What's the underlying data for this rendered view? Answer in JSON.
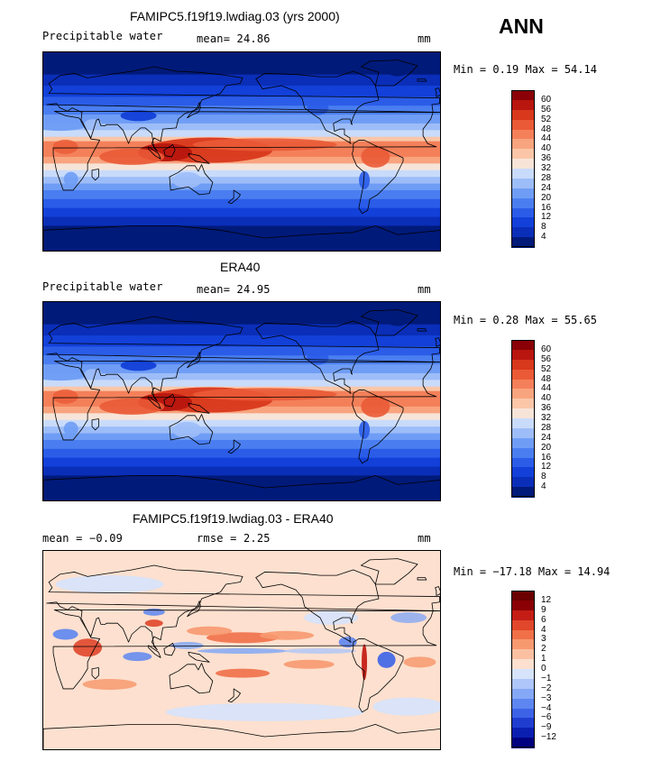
{
  "season": "ANN",
  "panels": [
    {
      "title": "FAMIPC5.f19f19.lwdiag.03 (yrs 2000)",
      "left_label": "Precipitable water",
      "mid_label": "mean=   24.86",
      "right_label": "mm",
      "minmax": "Min =   0.19  Max =   54.14",
      "colorbar_labels": [
        "60",
        "56",
        "52",
        "48",
        "44",
        "40",
        "36",
        "32",
        "28",
        "24",
        "20",
        "16",
        "12",
        "8",
        "4"
      ],
      "kind": "model"
    },
    {
      "title": "ERA40",
      "left_label": "Precipitable water",
      "mid_label": "mean=   24.95",
      "right_label": "mm",
      "minmax": "Min =   0.28  Max =   55.65",
      "colorbar_labels": [
        "60",
        "56",
        "52",
        "48",
        "44",
        "40",
        "36",
        "32",
        "28",
        "24",
        "20",
        "16",
        "12",
        "8",
        "4"
      ],
      "kind": "obs"
    },
    {
      "title": "FAMIPC5.f19f19.lwdiag.03 - ERA40",
      "left_label": "mean =   −0.09",
      "mid_label": "rmse =    2.25",
      "right_label": "mm",
      "minmax": "Min = −17.18  Max =   14.94",
      "colorbar_labels": [
        "12",
        "9",
        "6",
        "4",
        "3",
        "2",
        "1",
        "0",
        "−1",
        "−2",
        "−3",
        "−4",
        "−6",
        "−9",
        "−12"
      ],
      "kind": "diff"
    }
  ],
  "colors": {
    "abs_scale": [
      "#001a7a",
      "#0a2eb8",
      "#1240d8",
      "#2a5ce8",
      "#4a7ef0",
      "#6f9df5",
      "#9dbdf8",
      "#c9dbfa",
      "#f7e4d8",
      "#fbc6a8",
      "#f8a47e",
      "#f4805a",
      "#ea5a36",
      "#d8381c",
      "#b8160e",
      "#8a0006"
    ],
    "diff_scale": [
      "#000080",
      "#0a1fb0",
      "#1f3ed0",
      "#3c63e6",
      "#5d86f0",
      "#84a8f5",
      "#aec6f9",
      "#d6e3fb",
      "#fde0cf",
      "#fbc0a2",
      "#f7996f",
      "#f07048",
      "#e0472b",
      "#c41d15",
      "#8a0004",
      "#6a0000"
    ]
  }
}
